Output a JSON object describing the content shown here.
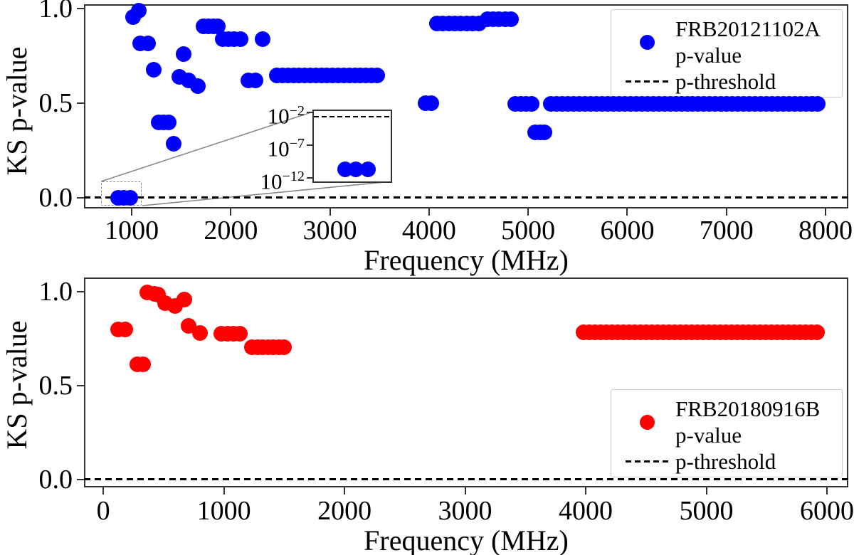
{
  "chart_data": [
    {
      "type": "scatter",
      "panel": "top",
      "title": "",
      "xlabel": "Frequency (MHz)",
      "ylabel": "KS p-value",
      "xlim": [
        518,
        8230
      ],
      "ylim": [
        -0.057,
        1.023
      ],
      "x_tick_values": [
        1000,
        2000,
        3000,
        4000,
        5000,
        6000,
        7000,
        8000
      ],
      "x_tick_labels": [
        "1000",
        "2000",
        "3000",
        "4000",
        "5000",
        "6000",
        "7000",
        "8000"
      ],
      "y_tick_values": [
        0.0,
        0.5,
        1.0
      ],
      "y_tick_labels": [
        "0.0",
        "0.5",
        "1.0"
      ],
      "grid": false,
      "legend_position": "upper right",
      "series": [
        {
          "name": "FRB20121102A p-value",
          "color": "#0000ff",
          "marker": "circle",
          "points": [
            [
              860,
              0.0
            ],
            [
              920,
              0.0
            ],
            [
              985,
              0.0
            ],
            [
              1015,
              0.955
            ],
            [
              1070,
              0.99
            ],
            [
              1085,
              0.815
            ],
            [
              1165,
              0.815
            ],
            [
              1220,
              0.675
            ],
            [
              1420,
              0.285
            ],
            [
              1480,
              0.64
            ],
            [
              1520,
              0.76
            ],
            [
              1575,
              0.62
            ],
            [
              1670,
              0.59
            ],
            [
              2320,
              0.84
            ],
            [
              3965,
              0.5
            ],
            [
              4020,
              0.5
            ]
          ],
          "bands": [
            [
              1270,
              1375,
              0.4
            ],
            [
              1725,
              1870,
              0.905
            ],
            [
              1920,
              2095,
              0.84
            ],
            [
              2180,
              2250,
              0.62
            ],
            [
              2465,
              3475,
              0.648
            ],
            [
              4080,
              4500,
              0.92
            ],
            [
              4590,
              4825,
              0.945
            ],
            [
              4870,
              5035,
              0.498
            ],
            [
              5070,
              5165,
              0.345
            ],
            [
              5230,
              7920,
              0.498
            ]
          ]
        }
      ],
      "threshold": {
        "label": "p-threshold",
        "value": 0.002,
        "linestyle": "dashed",
        "color": "#000000"
      },
      "legend": {
        "series_label_line1": "FRB20121102A",
        "series_label_line2": "p-value",
        "threshold_label": "p-threshold"
      },
      "inset": {
        "description": "log-scale zoom of near-zero p-values",
        "x_range": [
          690,
          1110
        ],
        "y_scale": "log",
        "tick_base": "10",
        "ytick_exponents": [
          "−2",
          "−7",
          "−12"
        ],
        "points_x": [
          860,
          920,
          985
        ],
        "points_exponent": -10.7,
        "threshold_exponent": -2.7
      }
    },
    {
      "type": "scatter",
      "panel": "bottom",
      "title": "",
      "xlabel": "Frequency (MHz)",
      "ylabel": "KS p-value",
      "xlim": [
        -160,
        6177
      ],
      "ylim": [
        -0.042,
        1.076
      ],
      "x_tick_values": [
        0,
        1000,
        2000,
        3000,
        4000,
        5000,
        6000
      ],
      "x_tick_labels": [
        "0",
        "1000",
        "2000",
        "3000",
        "4000",
        "5000",
        "6000"
      ],
      "y_tick_values": [
        0.0,
        0.5,
        1.0
      ],
      "y_tick_labels": [
        "0.0",
        "0.5",
        "1.0"
      ],
      "grid": false,
      "legend_position": "lower right",
      "series": [
        {
          "name": "FRB20180916B p-value",
          "color": "#ff0000",
          "marker": "circle",
          "points": [
            [
              125,
              0.8
            ],
            [
              180,
              0.8
            ],
            [
              285,
              0.615
            ],
            [
              330,
              0.615
            ],
            [
              365,
              0.995
            ],
            [
              425,
              0.99
            ],
            [
              455,
              0.985
            ],
            [
              510,
              0.94
            ],
            [
              595,
              0.925
            ],
            [
              670,
              0.96
            ],
            [
              710,
              0.82
            ],
            [
              800,
              0.78
            ]
          ],
          "bands": [
            [
              980,
              1130,
              0.775
            ],
            [
              1235,
              1500,
              0.705
            ],
            [
              3985,
              5920,
              0.785
            ]
          ]
        }
      ],
      "threshold": {
        "label": "p-threshold",
        "value": 0.002,
        "linestyle": "dashed",
        "color": "#000000"
      },
      "legend": {
        "series_label_line1": "FRB20180916B",
        "series_label_line2": "p-value",
        "threshold_label": "p-threshold"
      }
    }
  ]
}
